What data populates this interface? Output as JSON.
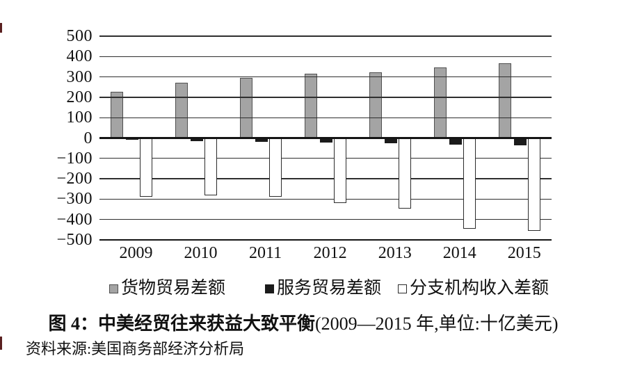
{
  "title": {
    "bold": "图 4：中美经贸往来获益大致平衡",
    "paren": "(2009—2015 年,单位:十亿美元)"
  },
  "source": "资料来源:美国商务部经济分析局",
  "chart_data": {
    "type": "bar",
    "title": "图 4：中美经贸往来获益大致平衡(2009—2015 年,单位:十亿美元)",
    "unit": "十亿美元",
    "categories": [
      "2009",
      "2010",
      "2011",
      "2012",
      "2013",
      "2014",
      "2015"
    ],
    "series": [
      {
        "name": "货物贸易差额",
        "fill": "#a4a4a4",
        "border": "#4f4f4f",
        "values": [
          227,
          273,
          295,
          315,
          324,
          345,
          367
        ]
      },
      {
        "name": "服务贸易差额",
        "fill": "#1b1b1b",
        "border": "#1b1b1b",
        "values": [
          -10,
          -15,
          -19,
          -21,
          -25,
          -31,
          -36
        ]
      },
      {
        "name": "分支机构收入差额",
        "fill": "#ffffff",
        "border": "#2b2b2b",
        "values": [
          -290,
          -282,
          -290,
          -320,
          -345,
          -445,
          -455
        ]
      }
    ],
    "ylim": [
      -500,
      500
    ],
    "ytick_step": 100,
    "grid": true,
    "legend_position": "bottom",
    "minus_glyph": "−"
  }
}
